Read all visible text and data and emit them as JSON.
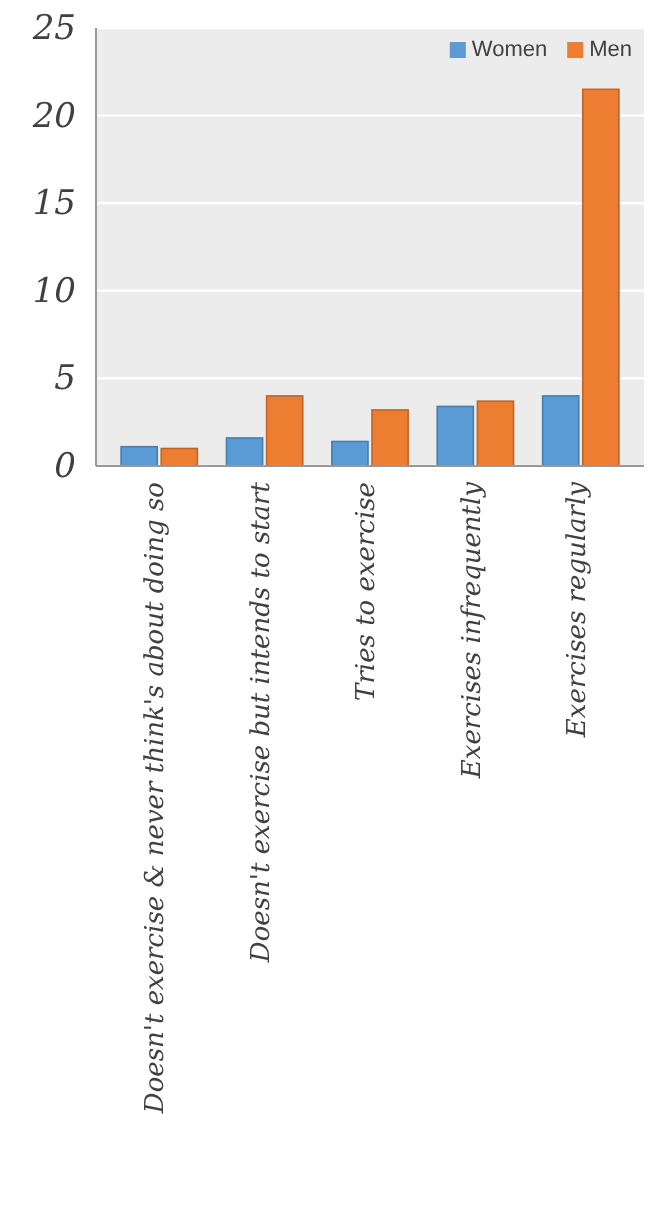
{
  "chart_data": {
    "type": "bar",
    "categories": [
      "Doesn't exercise & never think's about doing so",
      "Doesn't exercise but intends to start",
      "Tries to exercise",
      "Exercises infrequently",
      "Exercises regularly"
    ],
    "series": [
      {
        "name": "Women",
        "color": "#5b9bd5",
        "values": [
          1.1,
          1.6,
          1.4,
          3.4,
          4.0
        ]
      },
      {
        "name": "Men",
        "color": "#ed7d31",
        "values": [
          1.0,
          4.0,
          3.2,
          3.7,
          21.5
        ]
      }
    ],
    "ylim": [
      0,
      25
    ],
    "yticks": [
      0,
      5,
      10,
      15,
      20,
      25
    ],
    "grid": "y",
    "legend": "top right"
  }
}
